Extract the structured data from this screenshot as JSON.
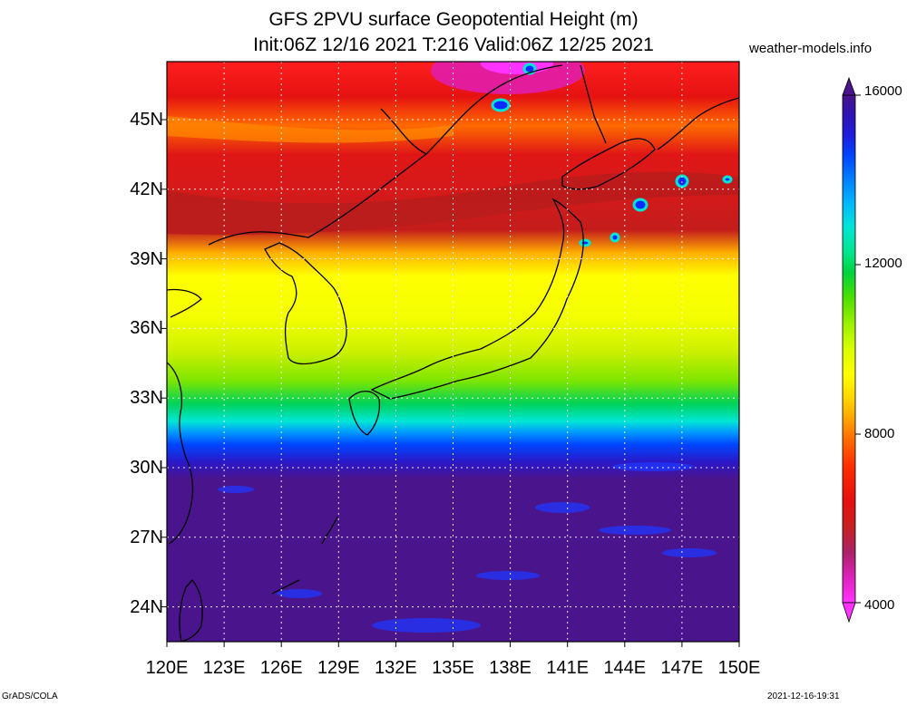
{
  "header": {
    "title": "GFS 2PVU surface Geopotential Height (m)",
    "subtitle": "Init:06Z 12/16 2021 T:216 Valid:06Z 12/25 2021",
    "source": "weather-models.info"
  },
  "map": {
    "lat_labels": [
      "45N",
      "42N",
      "39N",
      "36N",
      "33N",
      "30N",
      "27N",
      "24N"
    ],
    "lon_labels": [
      "120E",
      "123E",
      "126E",
      "129E",
      "132E",
      "135E",
      "138E",
      "141E",
      "144E",
      "147E",
      "150E"
    ],
    "lat_range": [
      22.5,
      47.5
    ],
    "lon_range": [
      120,
      150
    ],
    "grid": true,
    "coastlines": true,
    "field": "2PVU surface geopotential height, decreasing from south (~15500 m) to north (~5000 m)"
  },
  "colorbar": {
    "min": 4000,
    "max": 16000,
    "labels": [
      "16000",
      "12000",
      "8000",
      "4000"
    ],
    "colors": [
      "#ff33ff",
      "#dd22bb",
      "#aa2266",
      "#c72020",
      "#e61010",
      "#ff2d00",
      "#ff6a00",
      "#ffa000",
      "#ffd200",
      "#ffff00",
      "#d8ff00",
      "#9cf000",
      "#4ee000",
      "#00d23c",
      "#00e68c",
      "#00e6d6",
      "#00b4ff",
      "#0078ff",
      "#0046ff",
      "#1e1edc",
      "#2d14b4",
      "#4a148c"
    ]
  },
  "footer": {
    "left": "GrADS/COLA",
    "right": "2021-12-16-19:31"
  }
}
